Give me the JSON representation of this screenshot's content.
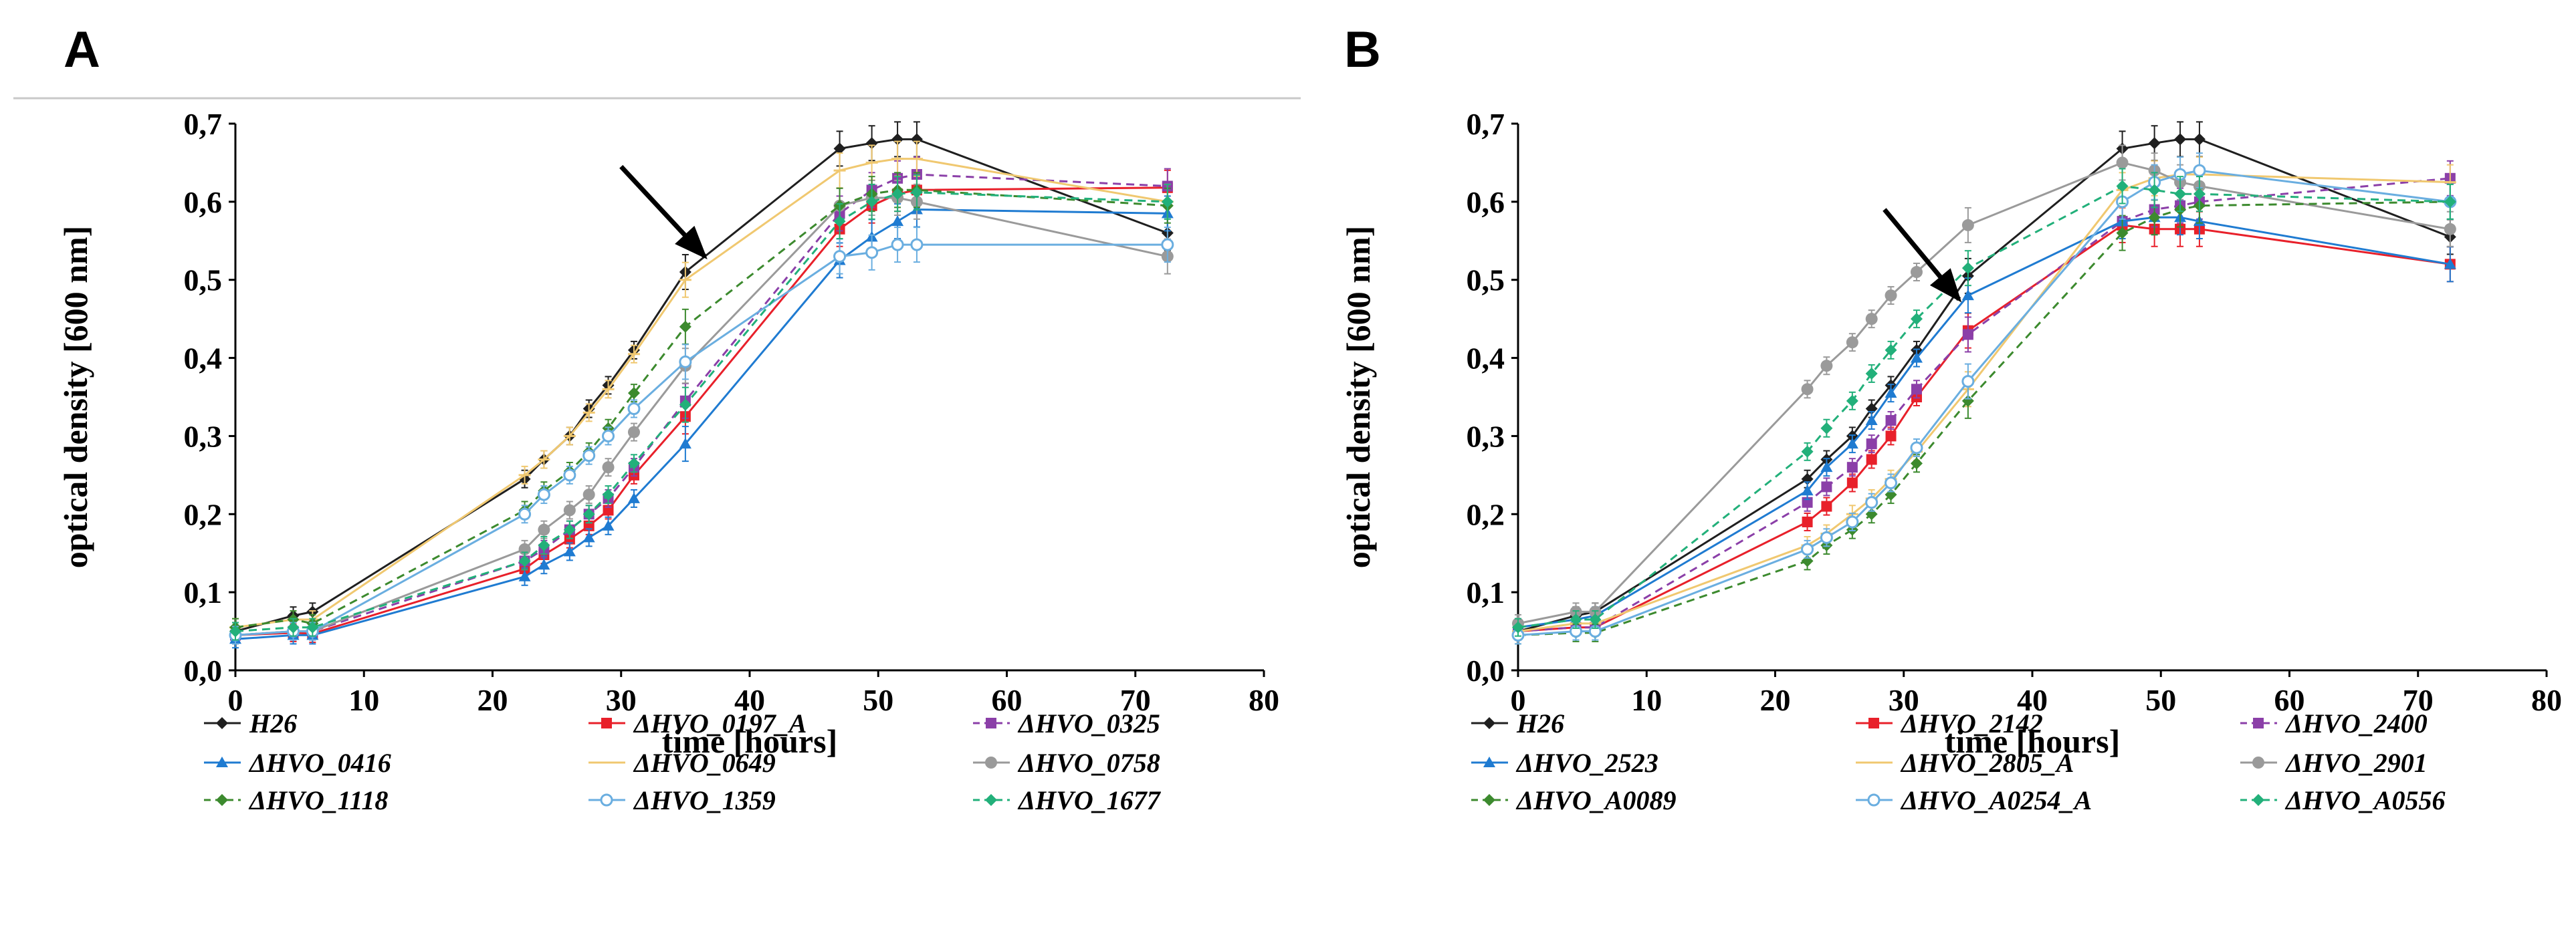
{
  "chart_data": [
    {
      "panel": "A",
      "type": "line",
      "xlabel": "time [hours]",
      "ylabel": "optical density [600 nm]",
      "xlim": [
        0,
        80
      ],
      "ylim": [
        0,
        0.7
      ],
      "xticks": [
        0,
        10,
        20,
        30,
        40,
        50,
        60,
        70,
        80
      ],
      "xtick_labels": [
        "0",
        "10",
        "20",
        "30",
        "40",
        "50",
        "60",
        "70",
        "80"
      ],
      "yticks": [
        0,
        0.1,
        0.2,
        0.3,
        0.4,
        0.5,
        0.6,
        0.7
      ],
      "ytick_labels": [
        "0,0",
        "0,1",
        "0,2",
        "0,3",
        "0,4",
        "0,5",
        "0,6",
        "0,7"
      ],
      "arrow": {
        "x_from": 30,
        "y_from": 0.645,
        "x_to": 36.5,
        "y_to": 0.53
      },
      "legend_position": "bottom",
      "series": [
        {
          "name": "H26",
          "color": "#1f1f1f",
          "marker": "diamond",
          "dashed": false,
          "x": [
            0,
            4.5,
            6,
            22.5,
            24,
            26,
            27.5,
            29,
            31,
            35,
            47,
            49.5,
            51.5,
            53,
            72.5
          ],
          "y": [
            0.05,
            0.07,
            0.075,
            0.245,
            0.27,
            0.3,
            0.335,
            0.365,
            0.41,
            0.51,
            0.668,
            0.675,
            0.68,
            0.68,
            0.56
          ]
        },
        {
          "name": "ΔHVO_0197_A",
          "color": "#e8202a",
          "marker": "square",
          "dashed": false,
          "x": [
            0,
            4.5,
            6,
            22.5,
            24,
            26,
            27.5,
            29,
            31,
            35,
            47,
            49.5,
            51.5,
            53,
            72.5
          ],
          "y": [
            0.045,
            0.048,
            0.047,
            0.13,
            0.148,
            0.168,
            0.185,
            0.205,
            0.25,
            0.325,
            0.565,
            0.595,
            0.61,
            0.615,
            0.618
          ]
        },
        {
          "name": "ΔHVO_0325",
          "color": "#8b3fa8",
          "marker": "square",
          "dashed": true,
          "x": [
            0,
            4.5,
            6,
            22.5,
            24,
            26,
            27.5,
            29,
            31,
            35,
            47,
            49.5,
            51.5,
            53,
            72.5
          ],
          "y": [
            0.045,
            0.05,
            0.05,
            0.14,
            0.155,
            0.18,
            0.2,
            0.22,
            0.26,
            0.345,
            0.585,
            0.615,
            0.63,
            0.635,
            0.62
          ]
        },
        {
          "name": "ΔHVO_0416",
          "color": "#1f7bd1",
          "marker": "triangle",
          "dashed": false,
          "x": [
            0,
            4.5,
            6,
            22.5,
            24,
            26,
            27.5,
            29,
            31,
            35,
            47,
            49.5,
            51.5,
            53,
            72.5
          ],
          "y": [
            0.04,
            0.045,
            0.045,
            0.12,
            0.135,
            0.152,
            0.17,
            0.185,
            0.22,
            0.29,
            0.525,
            0.555,
            0.575,
            0.59,
            0.585
          ]
        },
        {
          "name": "ΔHVO_0649",
          "color": "#f0c870",
          "marker": "line",
          "dashed": false,
          "x": [
            0,
            4.5,
            6,
            22.5,
            24,
            26,
            27.5,
            29,
            31,
            35,
            47,
            49.5,
            51.5,
            53,
            72.5
          ],
          "y": [
            0.055,
            0.065,
            0.065,
            0.25,
            0.27,
            0.3,
            0.33,
            0.36,
            0.405,
            0.5,
            0.64,
            0.65,
            0.655,
            0.655,
            0.6
          ]
        },
        {
          "name": "ΔHVO_0758",
          "color": "#9a9a9a",
          "marker": "circle",
          "dashed": false,
          "x": [
            0,
            4.5,
            6,
            22.5,
            24,
            26,
            27.5,
            29,
            31,
            35,
            47,
            49.5,
            51.5,
            53,
            72.5
          ],
          "y": [
            0.045,
            0.05,
            0.05,
            0.155,
            0.18,
            0.205,
            0.225,
            0.26,
            0.305,
            0.39,
            0.595,
            0.605,
            0.605,
            0.6,
            0.53
          ]
        },
        {
          "name": "ΔHVO_1118",
          "color": "#3c8a2e",
          "marker": "diamond",
          "dashed": true,
          "x": [
            0,
            4.5,
            6,
            22.5,
            24,
            26,
            27.5,
            29,
            31,
            35,
            47,
            49.5,
            51.5,
            53,
            72.5
          ],
          "y": [
            0.055,
            0.065,
            0.06,
            0.205,
            0.23,
            0.255,
            0.28,
            0.31,
            0.355,
            0.44,
            0.595,
            0.61,
            0.615,
            0.615,
            0.595
          ]
        },
        {
          "name": "ΔHVO_1359",
          "color": "#6aaee0",
          "marker": "open-circle",
          "dashed": false,
          "x": [
            0,
            4.5,
            6,
            22.5,
            24,
            26,
            27.5,
            29,
            31,
            35,
            47,
            49.5,
            51.5,
            53,
            72.5
          ],
          "y": [
            0.045,
            0.05,
            0.05,
            0.2,
            0.225,
            0.25,
            0.275,
            0.3,
            0.335,
            0.395,
            0.53,
            0.535,
            0.545,
            0.545,
            0.545
          ]
        },
        {
          "name": "ΔHVO_1677",
          "color": "#22b07a",
          "marker": "diamond",
          "dashed": true,
          "x": [
            0,
            4.5,
            6,
            22.5,
            24,
            26,
            27.5,
            29,
            31,
            35,
            47,
            49.5,
            51.5,
            53,
            72.5
          ],
          "y": [
            0.05,
            0.055,
            0.055,
            0.14,
            0.16,
            0.18,
            0.2,
            0.225,
            0.265,
            0.34,
            0.575,
            0.6,
            0.61,
            0.612,
            0.6
          ]
        }
      ]
    },
    {
      "panel": "B",
      "type": "line",
      "xlabel": "time [hours]",
      "ylabel": "optical density [600 nm]",
      "xlim": [
        0,
        80
      ],
      "ylim": [
        0,
        0.7
      ],
      "xticks": [
        0,
        10,
        20,
        30,
        40,
        50,
        60,
        70,
        80
      ],
      "xtick_labels": [
        "0",
        "10",
        "20",
        "30",
        "40",
        "50",
        "60",
        "70",
        "80"
      ],
      "yticks": [
        0,
        0.1,
        0.2,
        0.3,
        0.4,
        0.5,
        0.6,
        0.7
      ],
      "ytick_labels": [
        "0,0",
        "0,1",
        "0,2",
        "0,3",
        "0,4",
        "0,5",
        "0,6",
        "0,7"
      ],
      "arrow": {
        "x_from": 28.5,
        "y_from": 0.59,
        "x_to": 34.3,
        "y_to": 0.475
      },
      "legend_position": "bottom",
      "series": [
        {
          "name": "H26",
          "color": "#1f1f1f",
          "marker": "diamond",
          "dashed": false,
          "x": [
            0,
            4.5,
            6,
            22.5,
            24,
            26,
            27.5,
            29,
            31,
            35,
            47,
            49.5,
            51.5,
            53,
            72.5
          ],
          "y": [
            0.05,
            0.07,
            0.075,
            0.245,
            0.27,
            0.3,
            0.335,
            0.365,
            0.41,
            0.505,
            0.668,
            0.675,
            0.68,
            0.68,
            0.555
          ]
        },
        {
          "name": "ΔHVO_2142",
          "color": "#e8202a",
          "marker": "square",
          "dashed": false,
          "x": [
            0,
            4.5,
            6,
            22.5,
            24,
            26,
            27.5,
            29,
            31,
            35,
            47,
            49.5,
            51.5,
            53,
            72.5
          ],
          "y": [
            0.05,
            0.055,
            0.055,
            0.19,
            0.21,
            0.24,
            0.27,
            0.3,
            0.35,
            0.435,
            0.57,
            0.565,
            0.565,
            0.565,
            0.52
          ]
        },
        {
          "name": "ΔHVO_2400",
          "color": "#8b3fa8",
          "marker": "square",
          "dashed": true,
          "x": [
            0,
            4.5,
            6,
            22.5,
            24,
            26,
            27.5,
            29,
            31,
            35,
            47,
            49.5,
            51.5,
            53,
            72.5
          ],
          "y": [
            0.05,
            0.055,
            0.055,
            0.215,
            0.235,
            0.26,
            0.29,
            0.32,
            0.36,
            0.43,
            0.575,
            0.59,
            0.595,
            0.6,
            0.63
          ]
        },
        {
          "name": "ΔHVO_2523",
          "color": "#1f7bd1",
          "marker": "triangle",
          "dashed": false,
          "x": [
            0,
            4.5,
            6,
            22.5,
            24,
            26,
            27.5,
            29,
            31,
            35,
            47,
            49.5,
            51.5,
            53,
            72.5
          ],
          "y": [
            0.055,
            0.065,
            0.07,
            0.23,
            0.26,
            0.29,
            0.32,
            0.355,
            0.4,
            0.48,
            0.575,
            0.58,
            0.58,
            0.575,
            0.52
          ]
        },
        {
          "name": "ΔHVO_2805_A",
          "color": "#f0c870",
          "marker": "line",
          "dashed": false,
          "x": [
            0,
            4.5,
            6,
            22.5,
            24,
            26,
            27.5,
            29,
            31,
            35,
            47,
            49.5,
            51.5,
            53,
            72.5
          ],
          "y": [
            0.05,
            0.06,
            0.06,
            0.16,
            0.175,
            0.2,
            0.22,
            0.245,
            0.28,
            0.36,
            0.615,
            0.63,
            0.635,
            0.635,
            0.625
          ]
        },
        {
          "name": "ΔHVO_2901",
          "color": "#9a9a9a",
          "marker": "circle",
          "dashed": false,
          "x": [
            0,
            4.5,
            6,
            22.5,
            24,
            26,
            27.5,
            29,
            31,
            35,
            47,
            49.5,
            51.5,
            53,
            72.5
          ],
          "y": [
            0.06,
            0.075,
            0.075,
            0.36,
            0.39,
            0.42,
            0.45,
            0.48,
            0.51,
            0.57,
            0.65,
            0.64,
            0.625,
            0.62,
            0.565
          ]
        },
        {
          "name": "ΔHVO_A0089",
          "color": "#3c8a2e",
          "marker": "diamond",
          "dashed": true,
          "x": [
            0,
            4.5,
            6,
            22.5,
            24,
            26,
            27.5,
            29,
            31,
            35,
            47,
            49.5,
            51.5,
            53,
            72.5
          ],
          "y": [
            0.045,
            0.048,
            0.048,
            0.14,
            0.16,
            0.18,
            0.2,
            0.225,
            0.265,
            0.345,
            0.56,
            0.58,
            0.59,
            0.595,
            0.6
          ]
        },
        {
          "name": "ΔHVO_A0254_A",
          "color": "#6aaee0",
          "marker": "open-circle",
          "dashed": false,
          "x": [
            0,
            4.5,
            6,
            22.5,
            24,
            26,
            27.5,
            29,
            31,
            35,
            47,
            49.5,
            51.5,
            53,
            72.5
          ],
          "y": [
            0.045,
            0.05,
            0.05,
            0.155,
            0.17,
            0.19,
            0.215,
            0.24,
            0.285,
            0.37,
            0.6,
            0.625,
            0.635,
            0.64,
            0.6
          ]
        },
        {
          "name": "ΔHVO_A0556",
          "color": "#22b07a",
          "marker": "diamond",
          "dashed": true,
          "x": [
            0,
            4.5,
            6,
            22.5,
            24,
            26,
            27.5,
            29,
            31,
            35,
            47,
            49.5,
            51.5,
            53,
            72.5
          ],
          "y": [
            0.055,
            0.065,
            0.065,
            0.28,
            0.31,
            0.345,
            0.38,
            0.41,
            0.45,
            0.515,
            0.62,
            0.615,
            0.61,
            0.61,
            0.6
          ]
        }
      ]
    }
  ]
}
